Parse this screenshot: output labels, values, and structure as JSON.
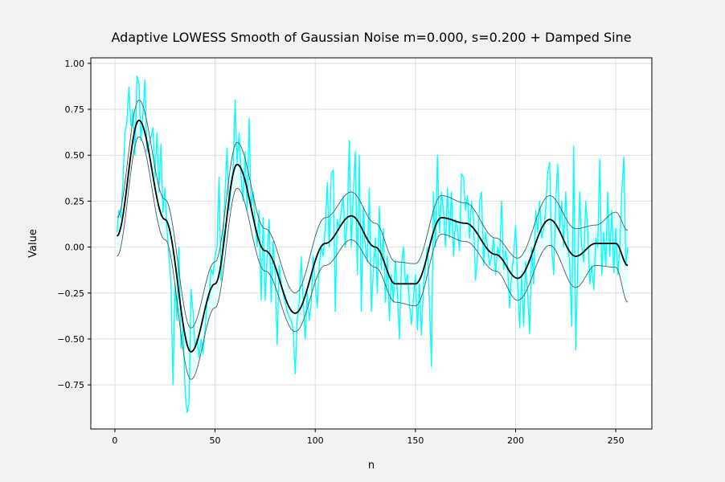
{
  "chart_data": {
    "type": "line",
    "title": "Adaptive LOWESS Smooth of Gaussian Noise m=0.000, s=0.200 + Damped Sine",
    "xlabel": "n",
    "ylabel": "Value",
    "xlim": [
      -12,
      268
    ],
    "ylim": [
      -0.99,
      1.03
    ],
    "xticks": [
      0,
      50,
      100,
      150,
      200,
      250
    ],
    "yticks": [
      -0.75,
      -0.5,
      -0.25,
      0.0,
      0.25,
      0.5,
      0.75,
      1.0
    ],
    "xtick_labels": [
      "0",
      "50",
      "100",
      "150",
      "200",
      "250"
    ],
    "ytick_labels": [
      "−0.75",
      "−0.50",
      "−0.25",
      "0.00",
      "0.25",
      "0.50",
      "0.75",
      "1.00"
    ],
    "grid": true,
    "colors": {
      "noisy": "#00ffff",
      "smooth": "#000000",
      "band_edge": "#555555",
      "band_fill": "#e0ffff",
      "grid": "#dddddd",
      "background": "#f2f2f2",
      "plot_background": "#ffffff"
    },
    "smooth_keypoints": {
      "x": [
        1,
        12,
        25,
        38,
        50,
        61,
        75,
        90,
        105,
        118,
        130,
        140,
        150,
        163,
        175,
        190,
        201,
        217,
        230,
        240,
        250,
        256
      ],
      "y": [
        0.06,
        0.69,
        0.15,
        -0.57,
        -0.2,
        0.45,
        -0.02,
        -0.36,
        0.02,
        0.17,
        0.0,
        -0.2,
        -0.2,
        0.16,
        0.13,
        -0.04,
        -0.17,
        0.15,
        -0.05,
        0.02,
        0.02,
        -0.1
      ]
    },
    "upper_band_keypoints": {
      "x": [
        1,
        12,
        25,
        38,
        50,
        61,
        75,
        90,
        105,
        118,
        130,
        140,
        150,
        163,
        175,
        190,
        201,
        217,
        230,
        240,
        250,
        256
      ],
      "y": [
        0.16,
        0.8,
        0.26,
        -0.44,
        -0.08,
        0.57,
        0.1,
        -0.25,
        0.16,
        0.3,
        0.13,
        -0.08,
        -0.09,
        0.28,
        0.24,
        0.05,
        -0.06,
        0.28,
        0.1,
        0.12,
        0.19,
        0.09
      ]
    },
    "lower_band_keypoints": {
      "x": [
        1,
        12,
        25,
        38,
        50,
        61,
        75,
        90,
        105,
        118,
        130,
        140,
        150,
        163,
        175,
        190,
        201,
        217,
        230,
        240,
        250,
        256
      ],
      "y": [
        -0.05,
        0.6,
        0.04,
        -0.72,
        -0.33,
        0.32,
        -0.13,
        -0.46,
        -0.1,
        0.04,
        -0.11,
        -0.3,
        -0.32,
        0.07,
        0.03,
        -0.13,
        -0.29,
        0.01,
        -0.22,
        -0.1,
        -0.11,
        -0.3
      ]
    },
    "noisy_series": {
      "n_start": 1,
      "values": [
        0.08,
        0.2,
        0.16,
        0.35,
        0.62,
        0.68,
        0.87,
        0.66,
        0.75,
        0.5,
        0.93,
        0.9,
        0.58,
        0.72,
        0.91,
        0.52,
        0.56,
        0.6,
        0.65,
        0.38,
        0.62,
        0.3,
        0.56,
        0.19,
        0.32,
        0.1,
        -0.05,
        -0.2,
        -0.75,
        -0.2,
        -0.4,
        0.0,
        -0.55,
        -0.43,
        -0.77,
        -0.9,
        -0.85,
        -0.23,
        -0.35,
        -0.55,
        -0.5,
        -0.6,
        -0.5,
        -0.58,
        -0.45,
        -0.3,
        -0.28,
        -0.12,
        -0.15,
        -0.05,
        0.0,
        0.38,
        -0.18,
        0.05,
        0.3,
        0.54,
        0.2,
        0.35,
        0.42,
        0.8,
        0.46,
        0.62,
        0.38,
        0.25,
        0.52,
        0.2,
        0.7,
        0.22,
        0.3,
        0.13,
        0.0,
        0.2,
        -0.29,
        0.16,
        -0.29,
        -0.05,
        0.15,
        -0.3,
        0.03,
        -0.15,
        -0.53,
        -0.1,
        -0.2,
        -0.25,
        -0.3,
        -0.35,
        -0.38,
        -0.4,
        -0.45,
        -0.69,
        -0.4,
        -0.3,
        -0.05,
        -0.3,
        -0.5,
        -0.25,
        -0.4,
        -0.3,
        -0.05,
        -0.2,
        -0.33,
        -0.1,
        0.0,
        -0.05,
        0.1,
        0.35,
        0.0,
        0.4,
        0.42,
        -0.35,
        0.15,
        0.1,
        0.2,
        0.28,
        0.0,
        0.15,
        0.58,
        0.0,
        0.3,
        0.52,
        -0.15,
        0.5,
        -0.35,
        0.22,
        0.0,
        -0.08,
        0.32,
        -0.35,
        -0.12,
        0.05,
        -0.25,
        0.22,
        -0.12,
        0.1,
        -0.3,
        -0.05,
        -0.4,
        -0.15,
        -0.3,
        -0.07,
        -0.25,
        -0.5,
        -0.1,
        0.0,
        -0.2,
        -0.15,
        -0.3,
        -0.42,
        -0.28,
        -0.15,
        -0.45,
        -0.2,
        -0.48,
        -0.22,
        -0.1,
        0.0,
        -0.3,
        -0.65,
        0.3,
        0.0,
        0.5,
        0.08,
        0.3,
        0.2,
        0.0,
        0.32,
        0.05,
        0.3,
        -0.05,
        0.15,
        0.1,
        -0.02,
        0.4,
        0.38,
        0.2,
        0.28,
        0.05,
        0.25,
        0.15,
        -0.18,
        -0.05,
        0.25,
        0.3,
        -0.1,
        0.08,
        0.0,
        -0.1,
        -0.05,
        0.05,
        -0.15,
        0.0,
        -0.05,
        0.25,
        -0.12,
        -0.02,
        -0.1,
        -0.33,
        -0.15,
        -0.05,
        0.12,
        -0.2,
        -0.44,
        -0.15,
        -0.43,
        -0.08,
        -0.25,
        -0.47,
        0.0,
        -0.2,
        0.2,
        0.08,
        0.25,
        0.05,
        0.1,
        0.2,
        0.41,
        0.46,
        0.0,
        -0.15,
        0.25,
        0.45,
        0.1,
        0.25,
        0.0,
        0.3,
        0.05,
        -0.1,
        -0.43,
        0.55,
        -0.56,
        -0.1,
        0.3,
        0.0,
        -0.08,
        0.25,
        0.1,
        -0.2,
        -0.1,
        -0.23,
        0.05,
        0.0,
        0.48,
        -0.15,
        0.08,
        -0.1,
        0.3,
        -0.05,
        0.2,
        -0.14,
        0.1,
        -0.15,
        0.0,
        0.3,
        0.49,
        -0.1,
        0.0
      ]
    }
  }
}
